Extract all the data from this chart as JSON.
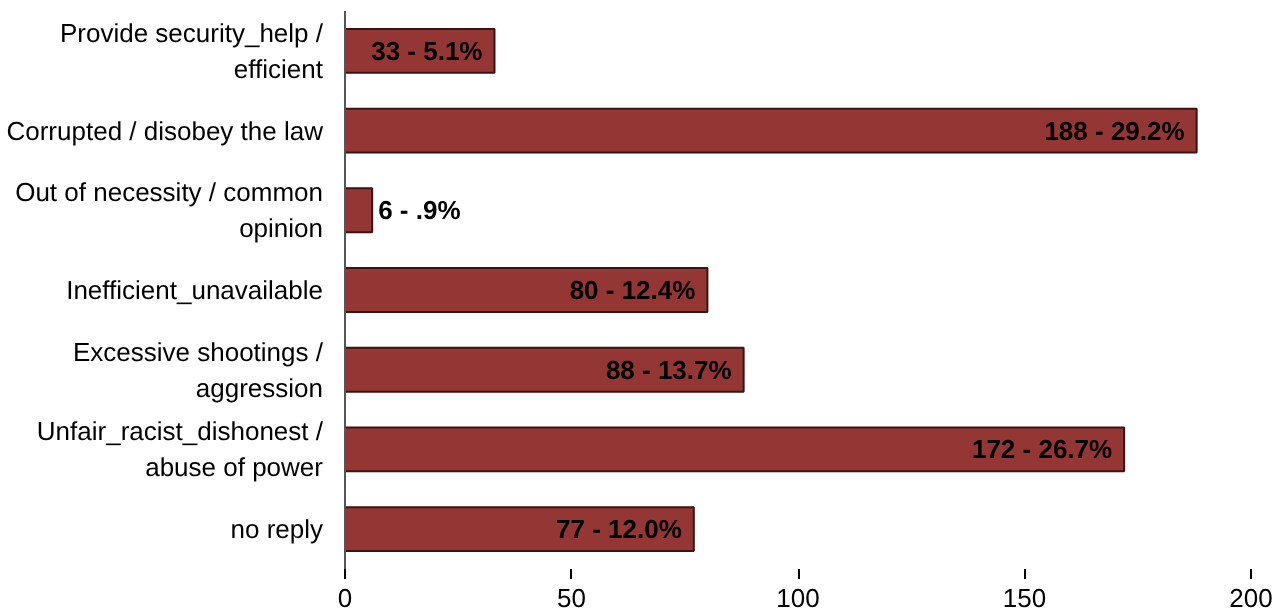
{
  "chart_data": {
    "type": "bar",
    "orientation": "horizontal",
    "categories": [
      "Provide security_help / efficient",
      "Corrupted / disobey the law",
      "Out of necessity / common opinion",
      "Inefficient_unavailable",
      "Excessive shootings / aggression",
      "Unfair_racist_dishonest / abuse of power",
      "no reply"
    ],
    "values": [
      33,
      188,
      6,
      80,
      88,
      172,
      77
    ],
    "value_labels": [
      "33 - 5.1%",
      "188 - 29.2%",
      "6 - .9%",
      "80 - 12.4%",
      "88 - 13.7%",
      "172 - 26.7%",
      "77 - 12.0%"
    ],
    "color": "#943634",
    "xlim": [
      0,
      200
    ],
    "xticks": [
      0,
      50,
      100,
      150,
      200
    ],
    "grid": false
  }
}
